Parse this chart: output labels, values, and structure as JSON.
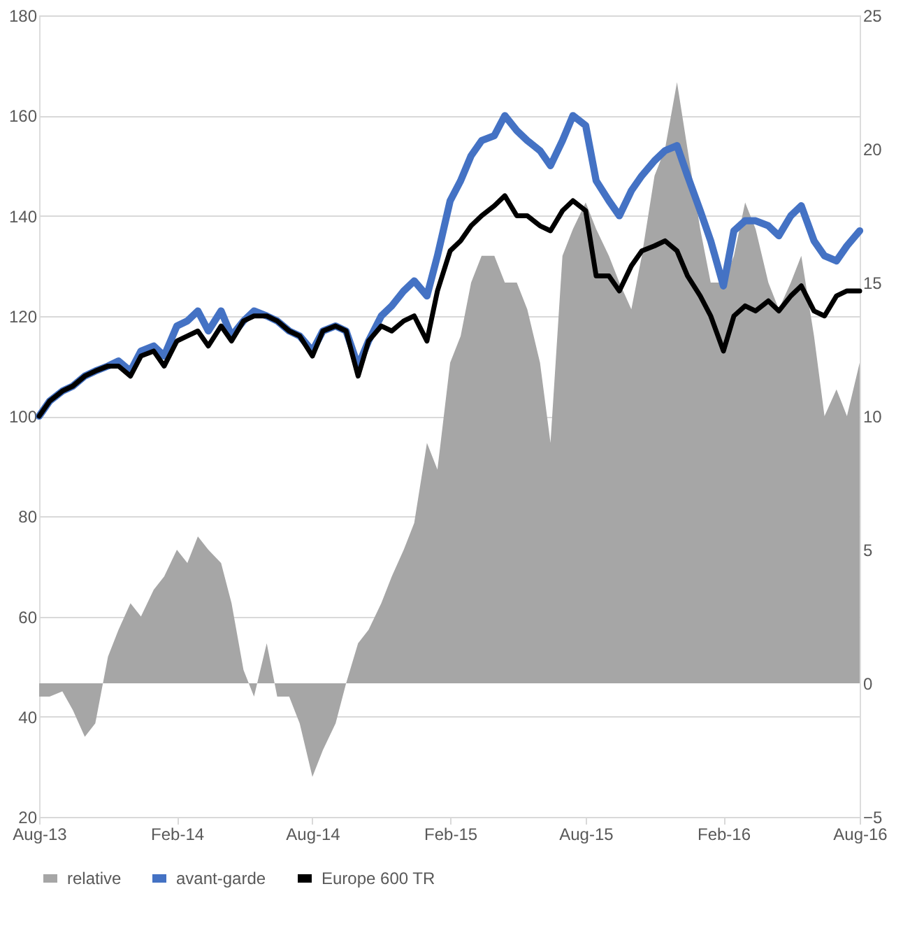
{
  "chart_data": {
    "type": "line",
    "x": [
      "2013-08-01",
      "2013-08-15",
      "2013-09-01",
      "2013-09-15",
      "2013-10-01",
      "2013-10-15",
      "2013-11-01",
      "2013-11-15",
      "2013-12-01",
      "2013-12-15",
      "2014-01-01",
      "2014-01-15",
      "2014-02-01",
      "2014-02-15",
      "2014-03-01",
      "2014-03-15",
      "2014-04-01",
      "2014-04-15",
      "2014-05-01",
      "2014-05-15",
      "2014-06-01",
      "2014-06-15",
      "2014-07-01",
      "2014-07-15",
      "2014-08-01",
      "2014-08-15",
      "2014-09-01",
      "2014-09-15",
      "2014-10-01",
      "2014-10-15",
      "2014-11-01",
      "2014-11-15",
      "2014-12-01",
      "2014-12-15",
      "2015-01-01",
      "2015-01-15",
      "2015-02-01",
      "2015-02-15",
      "2015-03-01",
      "2015-03-15",
      "2015-04-01",
      "2015-04-15",
      "2015-05-01",
      "2015-05-15",
      "2015-06-01",
      "2015-06-15",
      "2015-07-01",
      "2015-07-15",
      "2015-08-01",
      "2015-08-15",
      "2015-09-01",
      "2015-09-15",
      "2015-10-01",
      "2015-10-15",
      "2015-11-01",
      "2015-11-15",
      "2015-12-01",
      "2015-12-15",
      "2016-01-01",
      "2016-01-15",
      "2016-02-01",
      "2016-02-15",
      "2016-03-01",
      "2016-03-15",
      "2016-04-01",
      "2016-04-15",
      "2016-05-01",
      "2016-05-15",
      "2016-06-01",
      "2016-06-15",
      "2016-07-01",
      "2016-07-15",
      "2016-08-01"
    ],
    "series": [
      {
        "name": "relative",
        "type": "area",
        "axis": "y2",
        "color": "#a6a6a6",
        "values": [
          -0.5,
          -0.5,
          -0.3,
          -1,
          -2,
          -1.5,
          1,
          2,
          3,
          2.5,
          3.5,
          4,
          5,
          4.5,
          5.5,
          5,
          4.5,
          3,
          0.5,
          -0.5,
          1.5,
          -0.5,
          -0.5,
          -1.5,
          -3.5,
          -2.5,
          -1.5,
          0,
          1.5,
          2,
          3,
          4,
          5,
          6,
          9,
          8,
          12,
          13,
          15,
          16,
          16,
          15,
          15,
          14,
          12,
          9,
          16,
          17,
          18,
          17,
          16,
          15,
          14,
          16,
          19,
          20,
          22.5,
          20,
          17,
          15,
          15,
          16,
          18,
          17,
          15,
          14,
          15,
          16,
          13,
          10,
          11,
          10,
          12
        ]
      },
      {
        "name": "avant-garde",
        "color": "#4472c4",
        "values": [
          100,
          103,
          105,
          106,
          108,
          109,
          110,
          111,
          109,
          113,
          114,
          112,
          118,
          119,
          121,
          117,
          121,
          116,
          119,
          121,
          120,
          119,
          117,
          116,
          113,
          117,
          118,
          117,
          110,
          115,
          120,
          122,
          125,
          127,
          124,
          132,
          143,
          147,
          152,
          155,
          156,
          160,
          157,
          155,
          153,
          150,
          155,
          160,
          158,
          147,
          143,
          140,
          145,
          148,
          151,
          153,
          154,
          148,
          141,
          135,
          126,
          137,
          139,
          139,
          138,
          136,
          140,
          142,
          135,
          132,
          131,
          134,
          137
        ]
      },
      {
        "name": "Europe 600 TR",
        "color": "#000000",
        "values": [
          100,
          103,
          105,
          106,
          108,
          109,
          110,
          110,
          108,
          112,
          113,
          110,
          115,
          116,
          117,
          114,
          118,
          115,
          119,
          120,
          120,
          119,
          117,
          116,
          112,
          117,
          118,
          117,
          108,
          115,
          118,
          117,
          119,
          120,
          115,
          125,
          133,
          135,
          138,
          140,
          142,
          144,
          140,
          140,
          138,
          137,
          141,
          143,
          141,
          128,
          128,
          125,
          130,
          133,
          134,
          135,
          133,
          128,
          124,
          120,
          113,
          120,
          122,
          121,
          123,
          121,
          124,
          126,
          121,
          120,
          124,
          125,
          125
        ]
      }
    ],
    "xlim": [
      "2013-08-01",
      "2016-08-01"
    ],
    "xticks": [
      {
        "value": "2013-08-01",
        "label": "Aug-13"
      },
      {
        "value": "2014-02-01",
        "label": "Feb-14"
      },
      {
        "value": "2014-08-01",
        "label": "Aug-14"
      },
      {
        "value": "2015-02-01",
        "label": "Feb-15"
      },
      {
        "value": "2015-08-01",
        "label": "Aug-15"
      },
      {
        "value": "2016-02-01",
        "label": "Feb-16"
      },
      {
        "value": "2016-08-01",
        "label": "Aug-16"
      }
    ],
    "ylim": [
      20,
      180
    ],
    "yticks": [
      20,
      40,
      60,
      80,
      100,
      120,
      140,
      160,
      180
    ],
    "y2lim": [
      -5,
      25
    ],
    "y2ticks": [
      -5,
      0,
      5,
      10,
      15,
      20,
      25
    ],
    "grid": "y",
    "legend": "bottom",
    "line_style": "solid",
    "marker": "none"
  }
}
